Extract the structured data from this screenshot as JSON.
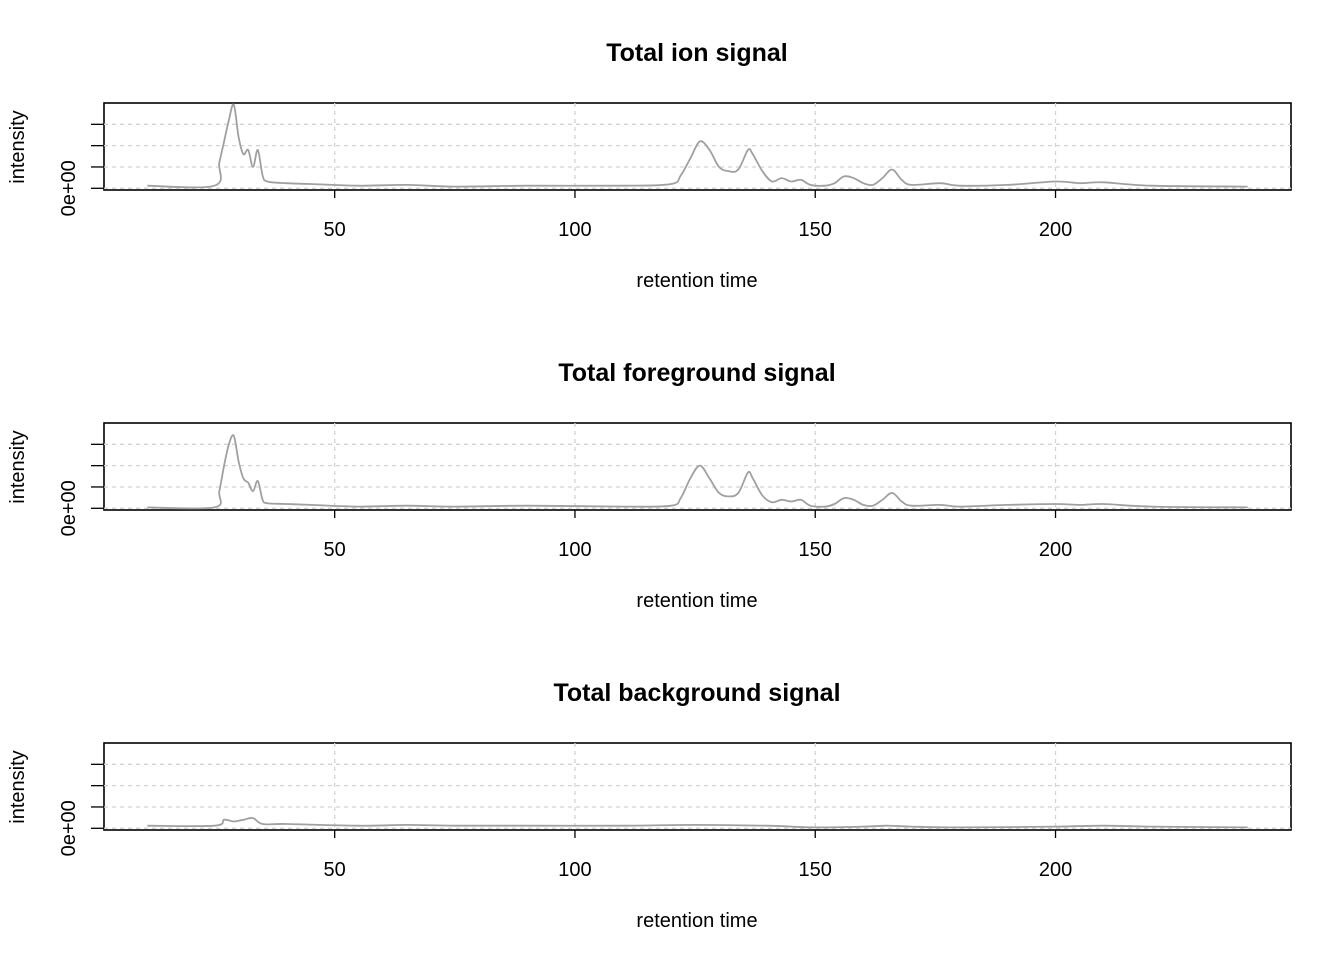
{
  "chart_data": [
    {
      "type": "line",
      "title": "Total ion signal",
      "xlabel": "retention time",
      "ylabel": "intensity",
      "xlim": [
        2,
        249
      ],
      "ylim": [
        -0.02,
        1.0
      ],
      "xticks": [
        50,
        100,
        150,
        200
      ],
      "yticks": [
        0,
        0.25,
        0.5,
        0.75
      ],
      "ytick_labels": [
        "0e+00",
        "",
        "",
        ""
      ],
      "grid": true,
      "series": [
        {
          "color": "#a0a0a0",
          "points": [
            [
              11,
              0.03
            ],
            [
              25,
              0.03
            ],
            [
              26,
              0.3
            ],
            [
              27,
              0.55
            ],
            [
              28,
              0.8
            ],
            [
              29,
              0.98
            ],
            [
              30,
              0.6
            ],
            [
              31,
              0.4
            ],
            [
              32,
              0.45
            ],
            [
              33,
              0.25
            ],
            [
              34,
              0.45
            ],
            [
              35,
              0.15
            ],
            [
              36,
              0.08
            ],
            [
              40,
              0.06
            ],
            [
              45,
              0.05
            ],
            [
              55,
              0.03
            ],
            [
              65,
              0.04
            ],
            [
              75,
              0.02
            ],
            [
              90,
              0.03
            ],
            [
              110,
              0.03
            ],
            [
              120,
              0.05
            ],
            [
              122,
              0.15
            ],
            [
              124,
              0.35
            ],
            [
              126,
              0.55
            ],
            [
              128,
              0.45
            ],
            [
              130,
              0.25
            ],
            [
              132,
              0.2
            ],
            [
              134,
              0.22
            ],
            [
              136,
              0.45
            ],
            [
              137,
              0.4
            ],
            [
              139,
              0.2
            ],
            [
              141,
              0.08
            ],
            [
              143,
              0.12
            ],
            [
              145,
              0.08
            ],
            [
              147,
              0.1
            ],
            [
              149,
              0.04
            ],
            [
              152,
              0.03
            ],
            [
              154,
              0.06
            ],
            [
              156,
              0.14
            ],
            [
              158,
              0.12
            ],
            [
              160,
              0.06
            ],
            [
              162,
              0.04
            ],
            [
              164,
              0.12
            ],
            [
              166,
              0.22
            ],
            [
              168,
              0.1
            ],
            [
              170,
              0.04
            ],
            [
              176,
              0.06
            ],
            [
              180,
              0.03
            ],
            [
              190,
              0.04
            ],
            [
              200,
              0.08
            ],
            [
              205,
              0.06
            ],
            [
              210,
              0.07
            ],
            [
              220,
              0.03
            ],
            [
              240,
              0.02
            ]
          ]
        }
      ]
    },
    {
      "type": "line",
      "title": "Total foreground signal",
      "xlabel": "retention time",
      "ylabel": "intensity",
      "xlim": [
        2,
        249
      ],
      "ylim": [
        -0.02,
        1.0
      ],
      "xticks": [
        50,
        100,
        150,
        200
      ],
      "yticks": [
        0,
        0.25,
        0.5,
        0.75
      ],
      "ytick_labels": [
        "0e+00",
        "",
        "",
        ""
      ],
      "grid": true,
      "series": [
        {
          "color": "#a0a0a0",
          "points": [
            [
              11,
              0.01
            ],
            [
              25,
              0.01
            ],
            [
              26,
              0.2
            ],
            [
              27,
              0.5
            ],
            [
              28,
              0.75
            ],
            [
              29,
              0.85
            ],
            [
              30,
              0.55
            ],
            [
              31,
              0.35
            ],
            [
              32,
              0.3
            ],
            [
              33,
              0.2
            ],
            [
              34,
              0.32
            ],
            [
              35,
              0.1
            ],
            [
              36,
              0.06
            ],
            [
              40,
              0.05
            ],
            [
              45,
              0.04
            ],
            [
              55,
              0.02
            ],
            [
              65,
              0.03
            ],
            [
              75,
              0.02
            ],
            [
              90,
              0.03
            ],
            [
              110,
              0.02
            ],
            [
              120,
              0.03
            ],
            [
              122,
              0.12
            ],
            [
              124,
              0.35
            ],
            [
              126,
              0.5
            ],
            [
              128,
              0.35
            ],
            [
              130,
              0.18
            ],
            [
              132,
              0.14
            ],
            [
              134,
              0.18
            ],
            [
              136,
              0.42
            ],
            [
              137,
              0.35
            ],
            [
              139,
              0.15
            ],
            [
              141,
              0.07
            ],
            [
              143,
              0.1
            ],
            [
              145,
              0.08
            ],
            [
              147,
              0.1
            ],
            [
              149,
              0.03
            ],
            [
              152,
              0.02
            ],
            [
              154,
              0.05
            ],
            [
              156,
              0.12
            ],
            [
              158,
              0.1
            ],
            [
              160,
              0.04
            ],
            [
              162,
              0.03
            ],
            [
              164,
              0.1
            ],
            [
              166,
              0.18
            ],
            [
              168,
              0.08
            ],
            [
              170,
              0.03
            ],
            [
              176,
              0.04
            ],
            [
              180,
              0.02
            ],
            [
              190,
              0.04
            ],
            [
              200,
              0.05
            ],
            [
              205,
              0.04
            ],
            [
              210,
              0.05
            ],
            [
              220,
              0.02
            ],
            [
              240,
              0.01
            ]
          ]
        }
      ]
    },
    {
      "type": "line",
      "title": "Total background signal",
      "xlabel": "retention time",
      "ylabel": "intensity",
      "xlim": [
        2,
        249
      ],
      "ylim": [
        -0.02,
        1.0
      ],
      "xticks": [
        50,
        100,
        150,
        200
      ],
      "yticks": [
        0,
        0.25,
        0.5,
        0.75
      ],
      "ytick_labels": [
        "0e+00",
        "",
        "",
        ""
      ],
      "grid": true,
      "series": [
        {
          "color": "#a0a0a0",
          "points": [
            [
              11,
              0.03
            ],
            [
              25,
              0.03
            ],
            [
              27,
              0.1
            ],
            [
              29,
              0.08
            ],
            [
              31,
              0.1
            ],
            [
              33,
              0.12
            ],
            [
              35,
              0.05
            ],
            [
              40,
              0.05
            ],
            [
              55,
              0.03
            ],
            [
              65,
              0.04
            ],
            [
              75,
              0.03
            ],
            [
              90,
              0.03
            ],
            [
              110,
              0.03
            ],
            [
              125,
              0.04
            ],
            [
              140,
              0.03
            ],
            [
              145,
              0.02
            ],
            [
              150,
              0.01
            ],
            [
              160,
              0.02
            ],
            [
              165,
              0.03
            ],
            [
              170,
              0.02
            ],
            [
              180,
              0.01
            ],
            [
              200,
              0.02
            ],
            [
              210,
              0.03
            ],
            [
              220,
              0.02
            ],
            [
              240,
              0.01
            ]
          ]
        }
      ]
    }
  ]
}
